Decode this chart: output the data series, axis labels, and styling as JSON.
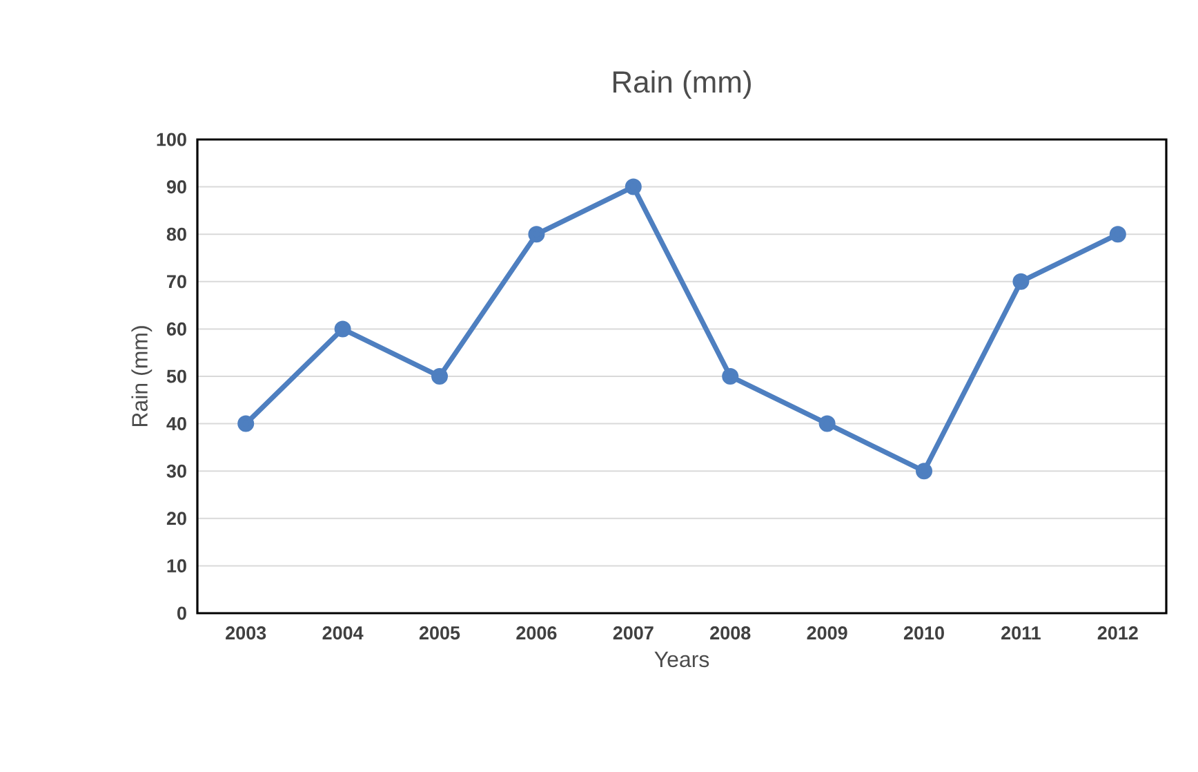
{
  "chart_data": {
    "type": "line",
    "title": "Rain (mm)",
    "xlabel": "Years",
    "ylabel": "Rain (mm)",
    "categories": [
      "2003",
      "2004",
      "2005",
      "2006",
      "2007",
      "2008",
      "2009",
      "2010",
      "2011",
      "2012"
    ],
    "series": [
      {
        "color": "#4e7fc0",
        "values": [
          40,
          60,
          50,
          80,
          90,
          50,
          40,
          30,
          70,
          80
        ]
      }
    ],
    "ylim": [
      0,
      100
    ],
    "yticks": [
      0,
      10,
      20,
      30,
      40,
      50,
      60,
      70,
      80,
      90,
      100
    ],
    "grid": "y",
    "marker": "circle",
    "line_style": "solid"
  }
}
